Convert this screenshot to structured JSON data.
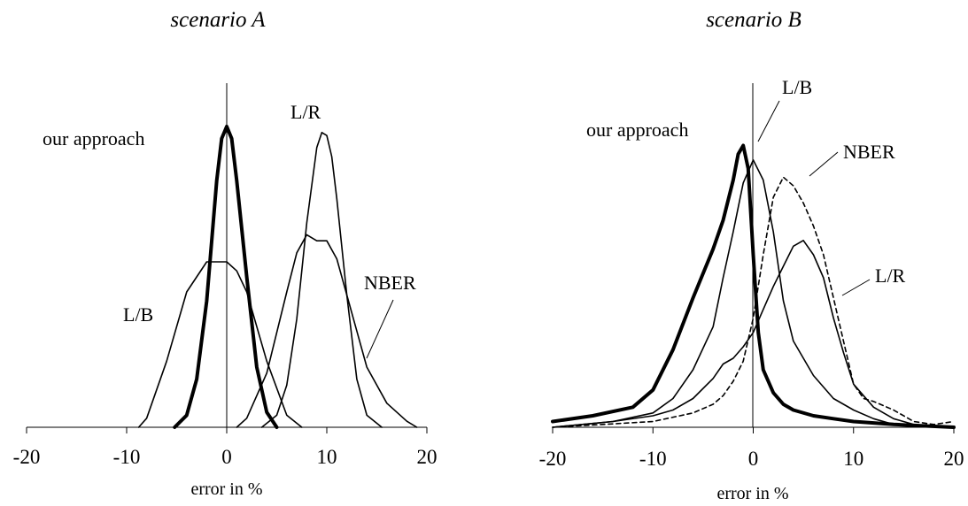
{
  "chart_data": [
    {
      "type": "line",
      "title": "scenario A",
      "xlabel": "error in %",
      "ylabel": "",
      "xlim": [
        -20,
        20
      ],
      "xticks": [
        -20,
        -10,
        0,
        10,
        20
      ],
      "ylim": [
        0,
        1
      ],
      "grid": false,
      "series": [
        {
          "name": "our approach",
          "style": "bold",
          "x": [
            -5.2,
            -4,
            -3,
            -2,
            -1,
            -0.5,
            0,
            0.5,
            1,
            2,
            3,
            4,
            5
          ],
          "y": [
            0.0,
            0.04,
            0.16,
            0.42,
            0.82,
            0.96,
            1.0,
            0.96,
            0.82,
            0.5,
            0.2,
            0.05,
            0.0
          ]
        },
        {
          "name": "L/R",
          "style": "thin",
          "x": [
            3.5,
            5,
            6,
            7,
            8,
            9,
            9.5,
            10,
            10.5,
            11,
            12,
            13,
            14,
            15.5
          ],
          "y": [
            0.0,
            0.04,
            0.14,
            0.36,
            0.68,
            0.93,
            0.98,
            0.97,
            0.9,
            0.76,
            0.44,
            0.16,
            0.04,
            0.0
          ]
        },
        {
          "name": "L/B",
          "style": "thin",
          "x": [
            -8.8,
            -8,
            -6,
            -4,
            -2,
            0,
            1,
            2,
            4,
            6,
            7.5
          ],
          "y": [
            0.0,
            0.03,
            0.22,
            0.45,
            0.55,
            0.55,
            0.52,
            0.45,
            0.22,
            0.04,
            0.0
          ]
        },
        {
          "name": "NBER",
          "style": "thin",
          "x": [
            1,
            2,
            4,
            6,
            7,
            8,
            9,
            10,
            11,
            12,
            13,
            14,
            16,
            18,
            19
          ],
          "y": [
            0.0,
            0.03,
            0.18,
            0.45,
            0.58,
            0.64,
            0.62,
            0.62,
            0.56,
            0.44,
            0.32,
            0.2,
            0.08,
            0.02,
            0.0
          ]
        }
      ],
      "annotations": [
        "our approach",
        "L/R",
        "L/B",
        "NBER"
      ]
    },
    {
      "type": "line",
      "title": "scenario B",
      "xlabel": "error in %",
      "ylabel": "",
      "xlim": [
        -20,
        20
      ],
      "xticks": [
        -20,
        -10,
        0,
        10,
        20
      ],
      "ylim": [
        0,
        1
      ],
      "grid": false,
      "series": [
        {
          "name": "our approach",
          "style": "bold",
          "x": [
            -20,
            -16,
            -12,
            -10,
            -8,
            -6,
            -4,
            -3,
            -2,
            -1.5,
            -1,
            -0.5,
            0,
            0.5,
            1,
            2,
            3,
            4,
            6,
            8,
            10,
            14,
            20
          ],
          "y": [
            0.02,
            0.04,
            0.07,
            0.13,
            0.27,
            0.45,
            0.62,
            0.72,
            0.86,
            0.95,
            0.98,
            0.9,
            0.6,
            0.33,
            0.2,
            0.12,
            0.08,
            0.06,
            0.04,
            0.03,
            0.02,
            0.01,
            0.0
          ]
        },
        {
          "name": "L/B",
          "style": "thin",
          "x": [
            -20,
            -14,
            -10,
            -8,
            -6,
            -4,
            -3,
            -2,
            -1,
            0,
            1,
            2,
            3,
            4,
            6,
            8,
            10,
            12,
            14,
            20
          ],
          "y": [
            0.0,
            0.02,
            0.05,
            0.1,
            0.2,
            0.35,
            0.52,
            0.68,
            0.85,
            0.93,
            0.86,
            0.68,
            0.44,
            0.3,
            0.18,
            0.1,
            0.06,
            0.03,
            0.01,
            0.0
          ]
        },
        {
          "name": "NBER",
          "style": "dashed",
          "x": [
            -20,
            -15,
            -10,
            -6,
            -4,
            -3,
            -2,
            -1,
            0,
            1,
            2,
            3,
            4,
            5,
            6,
            7,
            8,
            9,
            10,
            11,
            12,
            14,
            16,
            18,
            20
          ],
          "y": [
            0.0,
            0.01,
            0.02,
            0.05,
            0.08,
            0.11,
            0.16,
            0.23,
            0.38,
            0.6,
            0.8,
            0.87,
            0.84,
            0.78,
            0.7,
            0.6,
            0.45,
            0.3,
            0.15,
            0.1,
            0.09,
            0.06,
            0.02,
            0.01,
            0.02
          ]
        },
        {
          "name": "L/R",
          "style": "thin",
          "x": [
            -20,
            -14,
            -10,
            -8,
            -6,
            -4,
            -3,
            -2,
            -1,
            0,
            1,
            2,
            3,
            4,
            5,
            6,
            7,
            8,
            9,
            10,
            12,
            14,
            16,
            20
          ],
          "y": [
            0.0,
            0.02,
            0.04,
            0.06,
            0.1,
            0.17,
            0.22,
            0.24,
            0.28,
            0.33,
            0.41,
            0.49,
            0.56,
            0.63,
            0.65,
            0.6,
            0.52,
            0.38,
            0.26,
            0.15,
            0.07,
            0.03,
            0.01,
            0.0
          ]
        }
      ],
      "annotations": [
        "our approach",
        "L/B",
        "NBER",
        "L/R"
      ]
    }
  ]
}
